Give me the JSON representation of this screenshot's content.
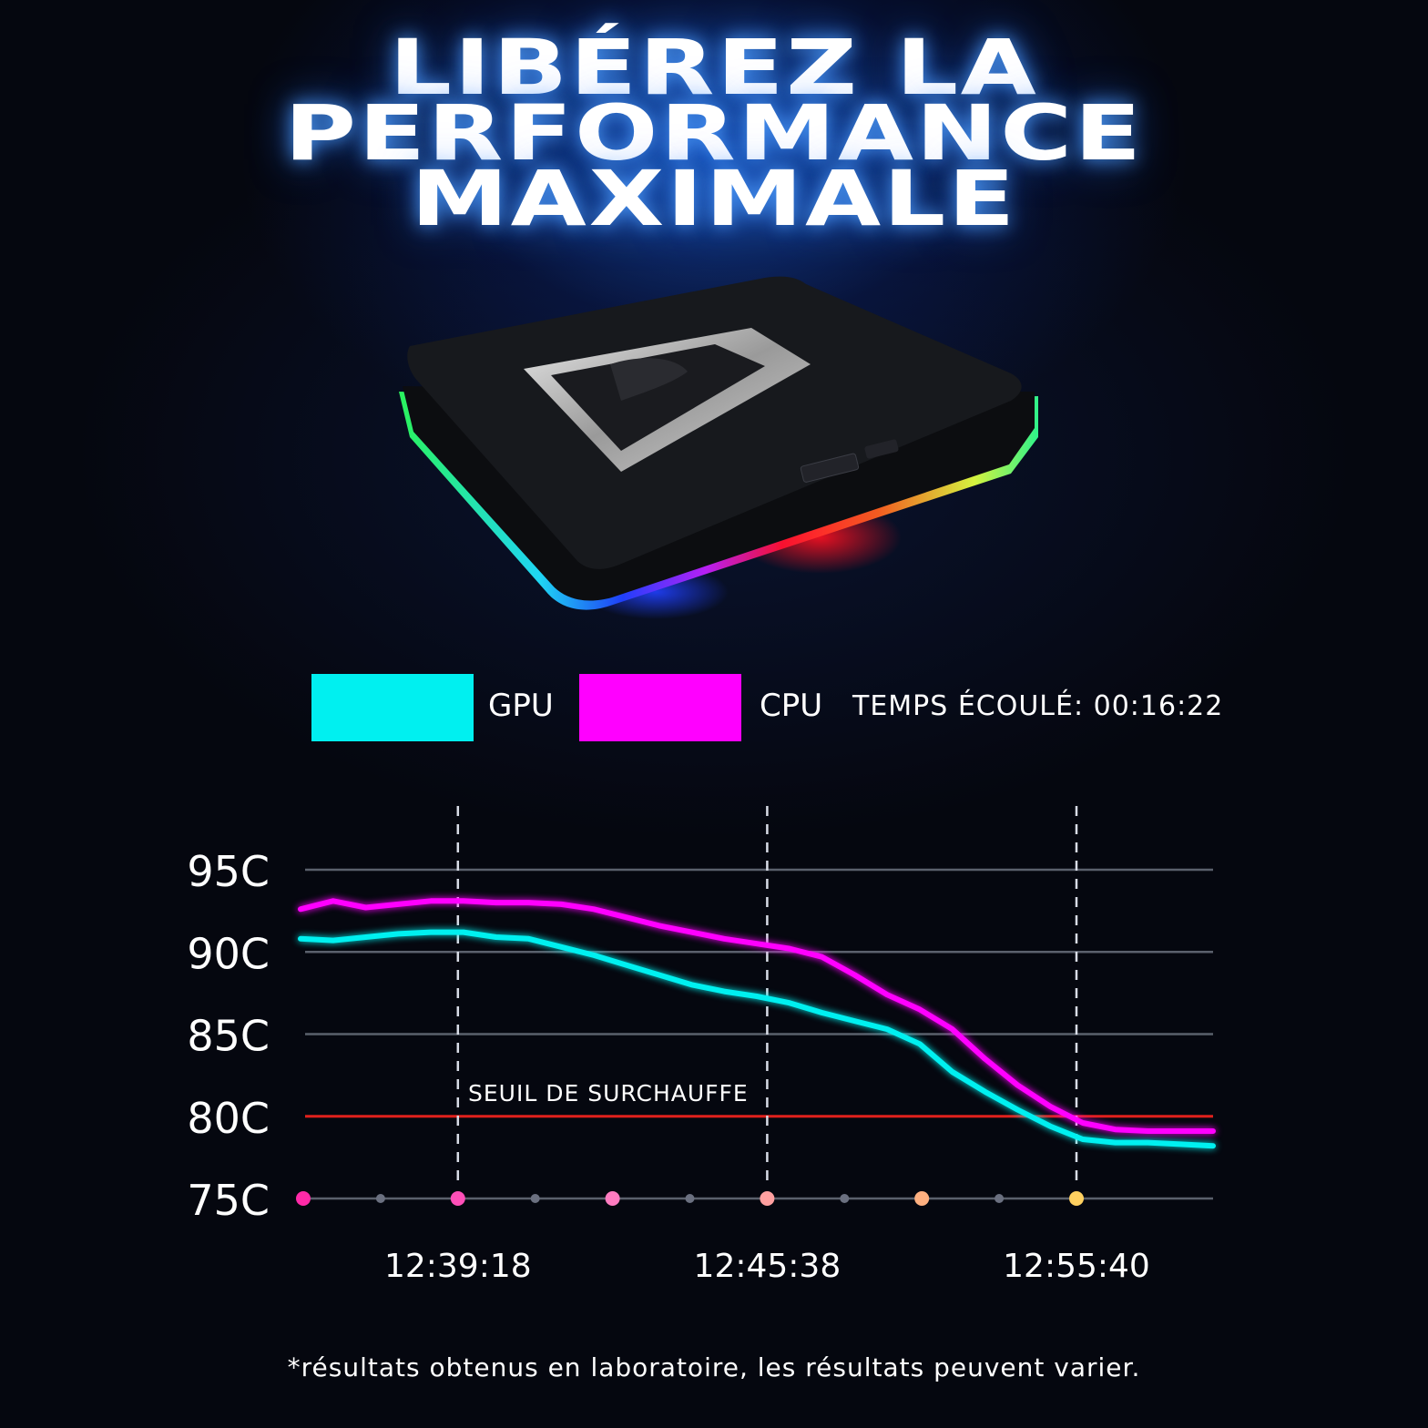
{
  "headline": {
    "line1": "LIBÉREZ LA",
    "line2": "PERFORMANCE",
    "line3": "MAXIMALE"
  },
  "legend": {
    "gpu_label": "GPU",
    "cpu_label": "CPU",
    "elapsed_text": "TEMPS ÉCOULÉ: 00:16:22"
  },
  "colors": {
    "gpu": "#00f0f0",
    "cpu": "#ff00ff",
    "threshold": "#e0201c",
    "grid": "#5a606c",
    "background": "#05070f",
    "glow": "#1e6eff"
  },
  "chart_data": {
    "type": "line",
    "ylabel": "",
    "xlabel": "",
    "ylim": [
      75,
      95
    ],
    "y_ticks": [
      "95C",
      "90C",
      "85C",
      "80C",
      "75C"
    ],
    "y_tick_values": [
      95,
      90,
      85,
      80,
      75
    ],
    "x_ticks": [
      "12:39:18",
      "12:45:38",
      "12:55:40"
    ],
    "threshold": {
      "label": "SEUIL DE SURCHAUFFE",
      "value": 80
    },
    "series": [
      {
        "name": "GPU",
        "color": "#00f0f0",
        "values": [
          90.8,
          90.7,
          90.9,
          91.1,
          91.2,
          91.2,
          90.9,
          90.8,
          90.3,
          89.8,
          89.2,
          88.6,
          88.0,
          87.6,
          87.3,
          86.9,
          86.3,
          85.8,
          85.3,
          84.4,
          82.7,
          81.5,
          80.4,
          79.4,
          78.6,
          78.4,
          78.4,
          78.3,
          78.2
        ]
      },
      {
        "name": "CPU",
        "color": "#ff00ff",
        "values": [
          92.6,
          93.1,
          92.7,
          92.9,
          93.1,
          93.1,
          93.0,
          93.0,
          92.9,
          92.6,
          92.1,
          91.6,
          91.2,
          90.8,
          90.5,
          90.2,
          89.7,
          88.6,
          87.4,
          86.5,
          85.3,
          83.5,
          81.9,
          80.6,
          79.6,
          79.2,
          79.1,
          79.1,
          79.1
        ]
      }
    ],
    "marker_colors": [
      "#ff2aa8",
      "#6b7080",
      "#ff4fb8",
      "#6b7080",
      "#ff7cc0",
      "#6b7080",
      "#ffa0a0",
      "#6b7080",
      "#ffb080",
      "#6b7080",
      "#ffd060"
    ]
  },
  "footnote": "*résultats obtenus en laboratoire, les résultats peuvent varier."
}
